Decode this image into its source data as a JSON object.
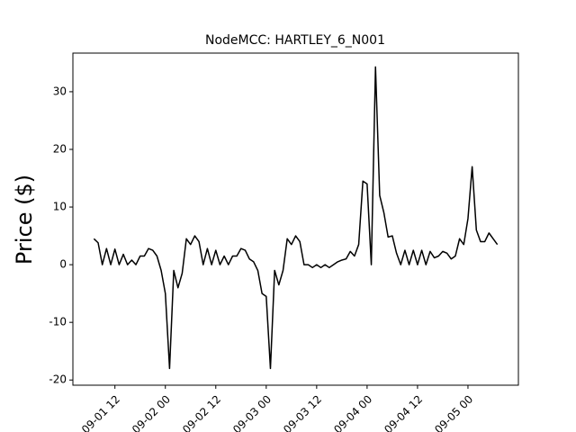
{
  "chart_data": {
    "type": "line",
    "title": "NodeMCC: HARTLEY_6_N001",
    "y_label": "Price ($)",
    "x": [
      "09-01 07",
      "09-01 08",
      "09-01 09",
      "09-01 10",
      "09-01 11",
      "09-01 12",
      "09-01 13",
      "09-01 14",
      "09-01 15",
      "09-01 16",
      "09-01 17",
      "09-01 18",
      "09-01 19",
      "09-01 20",
      "09-01 21",
      "09-01 22",
      "09-01 23",
      "09-02 00",
      "09-02 01",
      "09-02 02",
      "09-02 03",
      "09-02 04",
      "09-02 05",
      "09-02 06",
      "09-02 07",
      "09-02 08",
      "09-02 09",
      "09-02 10",
      "09-02 11",
      "09-02 12",
      "09-02 13",
      "09-02 14",
      "09-02 15",
      "09-02 16",
      "09-02 17",
      "09-02 18",
      "09-02 19",
      "09-02 20",
      "09-02 21",
      "09-02 22",
      "09-02 23",
      "09-03 00",
      "09-03 01",
      "09-03 02",
      "09-03 03",
      "09-03 04",
      "09-03 05",
      "09-03 06",
      "09-03 07",
      "09-03 08",
      "09-03 09",
      "09-03 10",
      "09-03 11",
      "09-03 12",
      "09-03 13",
      "09-03 14",
      "09-03 15",
      "09-03 16",
      "09-03 17",
      "09-03 18",
      "09-03 19",
      "09-03 20",
      "09-03 21",
      "09-03 22",
      "09-03 23",
      "09-04 00",
      "09-04 01",
      "09-04 02",
      "09-04 03",
      "09-04 04",
      "09-04 05",
      "09-04 06",
      "09-04 07",
      "09-04 08",
      "09-04 09",
      "09-04 10",
      "09-04 11",
      "09-04 12",
      "09-04 13",
      "09-04 14",
      "09-04 15",
      "09-04 16",
      "09-04 17",
      "09-04 18",
      "09-04 19",
      "09-04 20",
      "09-04 21",
      "09-04 22",
      "09-04 23",
      "09-05 00",
      "09-05 01",
      "09-05 02",
      "09-05 03",
      "09-05 04",
      "09-05 05",
      "09-05 06",
      "09-05 07"
    ],
    "series": [
      {
        "name": "HARTLEY_6_N001",
        "color": "#000000",
        "values": [
          4.5,
          3.8,
          0,
          2.8,
          0,
          2.7,
          0,
          1.8,
          0,
          0.8,
          0,
          1.5,
          1.5,
          2.8,
          2.5,
          1.5,
          -1,
          -5,
          -18,
          -1,
          -4,
          -1.5,
          4.5,
          3.5,
          5,
          4,
          0,
          2.8,
          0,
          2.5,
          0,
          1.5,
          0,
          1.5,
          1.5,
          2.8,
          2.5,
          1,
          0.5,
          -1,
          -5,
          -5.5,
          -18,
          -1,
          -3.5,
          -1,
          4.5,
          3.5,
          5,
          4,
          0,
          0,
          -0.5,
          0,
          -0.5,
          0,
          -0.5,
          0,
          0.5,
          0.8,
          1,
          2.3,
          1.5,
          3.5,
          14.5,
          14,
          0,
          34.3,
          12,
          9,
          4.8,
          5,
          2,
          0,
          2.5,
          0,
          2.5,
          0,
          2.5,
          0,
          2.3,
          1.2,
          1.5,
          2.3,
          2,
          1,
          1.5,
          4.5,
          3.5,
          8,
          17,
          6,
          4,
          4,
          5.5,
          4.5,
          3.5
        ]
      }
    ],
    "xlim": [
      "09-01 02",
      "09-05 12"
    ],
    "xticks": [
      "09-01 12",
      "09-02 00",
      "09-02 12",
      "09-03 00",
      "09-03 12",
      "09-04 00",
      "09-04 12",
      "09-05 00"
    ],
    "ylim": [
      -20.9,
      36.7
    ],
    "yticks": [
      -20,
      -10,
      0,
      10,
      20,
      30
    ],
    "grid": false
  }
}
